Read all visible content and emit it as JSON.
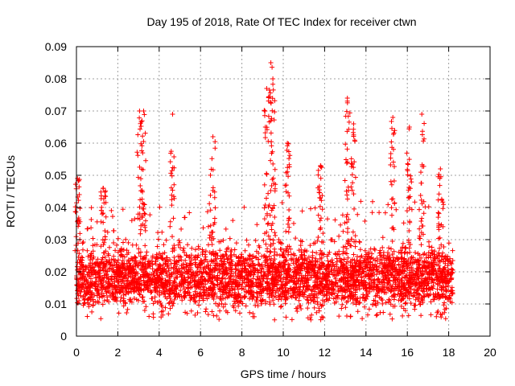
{
  "chart_data": {
    "type": "scatter",
    "title": "Day 195 of 2018, Rate Of TEC Index for receiver ctwn",
    "xlabel": "GPS time / hours",
    "ylabel": "ROTI / TECUs",
    "xlim": [
      0,
      20
    ],
    "ylim": [
      0,
      0.09
    ],
    "xticks": [
      "0",
      "2",
      "4",
      "6",
      "8",
      "10",
      "12",
      "14",
      "16",
      "18",
      "20"
    ],
    "yticks": [
      "0",
      "0.01",
      "0.02",
      "0.03",
      "0.04",
      "0.05",
      "0.06",
      "0.07",
      "0.08",
      "0.09"
    ],
    "grid": true,
    "marker": "+",
    "color": "#ff0000",
    "data_x_range": [
      0,
      18.2
    ],
    "series": [
      {
        "name": "ROTI",
        "description": "dense cloud of points",
        "baseline_band": [
          0.005,
          0.03
        ],
        "peaks": [
          {
            "x": 0.05,
            "y": 0.049
          },
          {
            "x": 1.3,
            "y": 0.046
          },
          {
            "x": 3.05,
            "y": 0.07
          },
          {
            "x": 3.25,
            "y": 0.07
          },
          {
            "x": 4.65,
            "y": 0.069
          },
          {
            "x": 6.6,
            "y": 0.062
          },
          {
            "x": 9.2,
            "y": 0.077
          },
          {
            "x": 9.4,
            "y": 0.085
          },
          {
            "x": 9.5,
            "y": 0.08
          },
          {
            "x": 10.2,
            "y": 0.06
          },
          {
            "x": 11.8,
            "y": 0.053
          },
          {
            "x": 13.1,
            "y": 0.074
          },
          {
            "x": 13.4,
            "y": 0.066
          },
          {
            "x": 15.3,
            "y": 0.068
          },
          {
            "x": 16.1,
            "y": 0.065
          },
          {
            "x": 16.7,
            "y": 0.069
          },
          {
            "x": 17.6,
            "y": 0.052
          }
        ]
      }
    ]
  }
}
